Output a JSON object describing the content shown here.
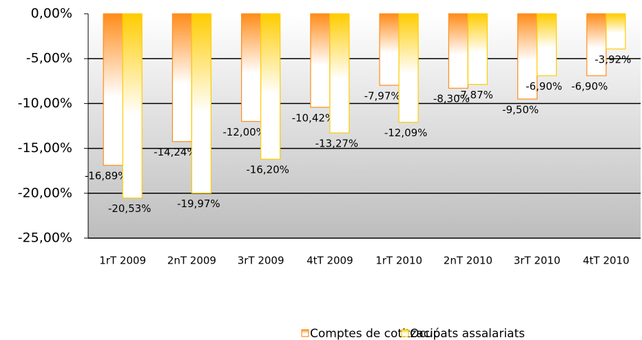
{
  "chart_data": {
    "type": "bar",
    "categories": [
      "1rT 2009",
      "2nT 2009",
      "3rT 2009",
      "4tT 2009",
      "1rT 2010",
      "2nT 2010",
      "3rT 2010",
      "4tT 2010"
    ],
    "series": [
      {
        "name": "Comptes de cotització",
        "color": "#ff8c1a",
        "values": [
          -16.89,
          -14.24,
          -12.0,
          -10.42,
          -7.97,
          -8.3,
          -9.5,
          -6.9
        ],
        "value_labels": [
          "-16,89%",
          "-14,24%",
          "-12,00%",
          "-10,42%",
          "-7,97%",
          "-8,30%",
          "-9,50%",
          "-6,90%"
        ]
      },
      {
        "name": "Ocupats assalariats",
        "color": "#ffcc00",
        "values": [
          -20.53,
          -19.97,
          -16.2,
          -13.27,
          -12.09,
          -7.87,
          -6.9,
          -3.92
        ],
        "value_labels": [
          "-20,53%",
          "-19,97%",
          "-16,20%",
          "-13,27%",
          "-12,09%",
          "-7,87%",
          "-6,90%",
          "-3,92%"
        ]
      }
    ],
    "ylim": [
      -25,
      0
    ],
    "yticks": [
      {
        "value": 0,
        "label": "0,00%"
      },
      {
        "value": -5,
        "label": "-5,00%"
      },
      {
        "value": -10,
        "label": "-10,00%"
      },
      {
        "value": -15,
        "label": "-15,00%"
      },
      {
        "value": -20,
        "label": "-20,00%"
      },
      {
        "value": -25,
        "label": "-25,00%"
      }
    ],
    "grid": true,
    "legend": "bottom"
  }
}
